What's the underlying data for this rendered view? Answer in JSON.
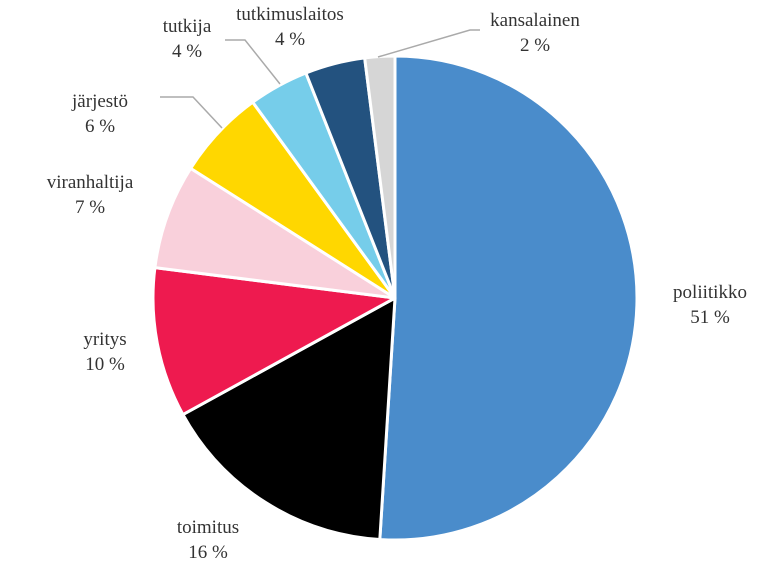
{
  "chart_data": {
    "type": "pie",
    "categories": [
      "poliitikko",
      "toimitus",
      "yritys",
      "viranhaltija",
      "järjestö",
      "tutkija",
      "tutkimuslaitos",
      "kansalainen"
    ],
    "values": [
      51,
      16,
      10,
      7,
      6,
      4,
      4,
      2
    ],
    "value_labels": [
      "51 %",
      "16 %",
      "10 %",
      "7 %",
      "6 %",
      "4 %",
      "4 %",
      "2 %"
    ],
    "colors": [
      "#4a8ccb",
      "#000000",
      "#ee1a4f",
      "#f9d0db",
      "#ffd700",
      "#76cdea",
      "#23527f",
      "#d6d6d6"
    ]
  }
}
